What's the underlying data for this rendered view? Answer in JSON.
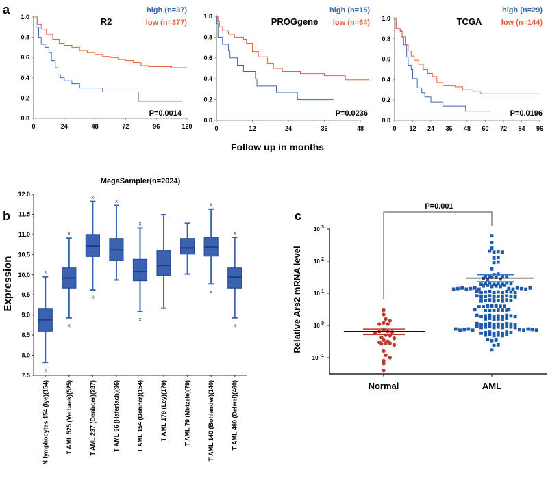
{
  "colors": {
    "high": "#3d66ad",
    "low": "#e5603a",
    "box": "#3a62b0",
    "box_edge": "#2a4f9a",
    "normal": "#c0392b",
    "aml": "#1f5aa8",
    "axis": "#999999"
  },
  "panel_labels": {
    "a": "a",
    "b": "b",
    "c": "c"
  },
  "panel_a": {
    "xlabel": "Follow up in months"
  },
  "chart_data": [
    {
      "type": "line",
      "id": "R2",
      "title": "R2",
      "legend": {
        "high": "high (n=37)",
        "low": "low (n=377)"
      },
      "pvalue": "P=0.0014",
      "xlim": [
        0,
        120
      ],
      "xticks": [
        0,
        24,
        48,
        72,
        96,
        120
      ],
      "ylim": [
        0,
        1
      ],
      "yticks": [
        "0.0",
        "0.2",
        "0.4",
        "0.6",
        "0.8",
        "1.0"
      ],
      "series": [
        {
          "name": "high",
          "points": [
            [
              0,
              1
            ],
            [
              2,
              0.9
            ],
            [
              4,
              0.8
            ],
            [
              6,
              0.73
            ],
            [
              9,
              0.7
            ],
            [
              12,
              0.65
            ],
            [
              14,
              0.57
            ],
            [
              17,
              0.5
            ],
            [
              19,
              0.43
            ],
            [
              21,
              0.4
            ],
            [
              24,
              0.37
            ],
            [
              30,
              0.34
            ],
            [
              36,
              0.3
            ],
            [
              54,
              0.26
            ],
            [
              82,
              0.17
            ],
            [
              116,
              0.17
            ]
          ]
        },
        {
          "name": "low",
          "points": [
            [
              0,
              1
            ],
            [
              3,
              0.93
            ],
            [
              6,
              0.88
            ],
            [
              10,
              0.83
            ],
            [
              15,
              0.78
            ],
            [
              20,
              0.74
            ],
            [
              24,
              0.72
            ],
            [
              30,
              0.7
            ],
            [
              36,
              0.67
            ],
            [
              42,
              0.65
            ],
            [
              48,
              0.63
            ],
            [
              54,
              0.61
            ],
            [
              60,
              0.6
            ],
            [
              66,
              0.58
            ],
            [
              72,
              0.57
            ],
            [
              78,
              0.55
            ],
            [
              84,
              0.52
            ],
            [
              90,
              0.51
            ],
            [
              102,
              0.51
            ],
            [
              108,
              0.5
            ],
            [
              120,
              0.5
            ]
          ]
        }
      ]
    },
    {
      "type": "line",
      "id": "PROGgene",
      "title": "PROGgene",
      "legend": {
        "high": "high (n=15)",
        "low": "low (n=64)"
      },
      "pvalue": "P=0.0236",
      "xlim": [
        0,
        48
      ],
      "xticks": [
        0,
        12,
        24,
        36,
        48
      ],
      "ylim": [
        0,
        1
      ],
      "yticks": [
        "0.0",
        "0.2",
        "0.4",
        "0.6",
        "0.8",
        "1.0"
      ],
      "series": [
        {
          "name": "high",
          "points": [
            [
              0,
              1
            ],
            [
              0.2,
              0.93
            ],
            [
              0.5,
              0.8
            ],
            [
              2,
              0.73
            ],
            [
              4,
              0.67
            ],
            [
              4.5,
              0.6
            ],
            [
              7,
              0.53
            ],
            [
              9,
              0.47
            ],
            [
              13,
              0.4
            ],
            [
              13.5,
              0.33
            ],
            [
              20,
              0.27
            ],
            [
              27,
              0.2
            ],
            [
              39,
              0.2
            ]
          ]
        },
        {
          "name": "low",
          "points": [
            [
              0,
              1
            ],
            [
              0.5,
              0.95
            ],
            [
              1,
              0.9
            ],
            [
              2,
              0.86
            ],
            [
              4,
              0.83
            ],
            [
              6,
              0.8
            ],
            [
              9,
              0.78
            ],
            [
              10,
              0.74
            ],
            [
              12,
              0.66
            ],
            [
              14,
              0.61
            ],
            [
              17,
              0.55
            ],
            [
              19,
              0.5
            ],
            [
              22,
              0.47
            ],
            [
              28,
              0.45
            ],
            [
              36,
              0.43
            ],
            [
              43,
              0.39
            ],
            [
              51,
              0.39
            ]
          ]
        }
      ]
    },
    {
      "type": "line",
      "id": "TCGA",
      "title": "TCGA",
      "legend": {
        "high": "high (n=29)",
        "low": "low (n=144)"
      },
      "pvalue": "P=0.0196",
      "xlim": [
        0,
        96
      ],
      "xticks": [
        0,
        12,
        24,
        36,
        48,
        60,
        72,
        84,
        96
      ],
      "ylim": [
        0,
        1
      ],
      "yticks": [
        "0.0",
        "0.2",
        "0.4",
        "0.6",
        "0.8",
        "1.0"
      ],
      "series": [
        {
          "name": "high",
          "points": [
            [
              0,
              1
            ],
            [
              1,
              0.9
            ],
            [
              4,
              0.87
            ],
            [
              5,
              0.81
            ],
            [
              6,
              0.74
            ],
            [
              8,
              0.62
            ],
            [
              9,
              0.54
            ],
            [
              11,
              0.5
            ],
            [
              12,
              0.41
            ],
            [
              15,
              0.32
            ],
            [
              18,
              0.27
            ],
            [
              20,
              0.23
            ],
            [
              24,
              0.18
            ],
            [
              32,
              0.14
            ],
            [
              47,
              0.09
            ],
            [
              63,
              0.09
            ]
          ]
        },
        {
          "name": "low",
          "points": [
            [
              0,
              1
            ],
            [
              1,
              0.9
            ],
            [
              3,
              0.88
            ],
            [
              5,
              0.82
            ],
            [
              7,
              0.74
            ],
            [
              9,
              0.68
            ],
            [
              11,
              0.63
            ],
            [
              13,
              0.59
            ],
            [
              16,
              0.55
            ],
            [
              19,
              0.5
            ],
            [
              22,
              0.46
            ],
            [
              25,
              0.43
            ],
            [
              28,
              0.37
            ],
            [
              32,
              0.34
            ],
            [
              40,
              0.33
            ],
            [
              45,
              0.3
            ],
            [
              52,
              0.28
            ],
            [
              57,
              0.26
            ],
            [
              95,
              0.26
            ]
          ]
        }
      ]
    },
    {
      "type": "box",
      "id": "MegaSampler",
      "title": "MegaSampler(n=2024)",
      "ylabel": "Expression",
      "ylim": [
        7.5,
        12.0
      ],
      "yticks": [
        "7.5",
        "8.0",
        "8.5",
        "9.0",
        "9.5",
        "10.0",
        "10.5",
        "11.0",
        "11.5",
        "12.0"
      ],
      "categories": [
        "N lymphocytes 154 (Iye)(154)",
        "T AML 525 (Verhaak)(525)",
        "T AML 237 (Denboer)(237)",
        "T AML 96 (Haferlach)(96)",
        "T AML 154 (Dohner)(154)",
        "T AML 179 (Ley)(179)",
        "T AML 79 (Metzele)(79)",
        "T AML 140 (Bohlander)(140)",
        "T AML 460 (Delwel)(460)"
      ],
      "boxes": [
        {
          "min": 7.82,
          "q1": 8.6,
          "median": 8.88,
          "q3": 9.15,
          "max": 9.95,
          "outliers": [
            7.63,
            10.07
          ]
        },
        {
          "min": 8.93,
          "q1": 9.67,
          "median": 9.92,
          "q3": 10.17,
          "max": 10.91,
          "outliers": [
            8.75,
            11.03
          ]
        },
        {
          "min": 9.62,
          "q1": 10.45,
          "median": 10.71,
          "q3": 11.0,
          "max": 11.82,
          "outliers": [
            9.45,
            11.93
          ]
        },
        {
          "min": 9.87,
          "q1": 10.35,
          "median": 10.62,
          "q3": 10.9,
          "max": 11.72,
          "outliers": [
            11.83
          ]
        },
        {
          "min": 9.08,
          "q1": 9.85,
          "median": 10.08,
          "q3": 10.38,
          "max": 11.16,
          "outliers": [
            8.9,
            11.28
          ]
        },
        {
          "min": 9.17,
          "q1": 9.99,
          "median": 10.23,
          "q3": 10.61,
          "max": 11.49,
          "outliers": []
        },
        {
          "min": 10.02,
          "q1": 10.51,
          "median": 10.67,
          "q3": 10.9,
          "max": 11.28,
          "outliers": []
        },
        {
          "min": 9.77,
          "q1": 10.46,
          "median": 10.69,
          "q3": 10.93,
          "max": 11.63,
          "outliers": [
            9.59,
            11.75
          ]
        },
        {
          "min": 8.93,
          "q1": 9.67,
          "median": 9.94,
          "q3": 10.17,
          "max": 10.93,
          "outliers": [
            8.75,
            11.04
          ]
        }
      ]
    },
    {
      "type": "scatter",
      "id": "Ars2",
      "ylabel": "Relative Ars2 mRNA level",
      "yscale": "log",
      "ylim": [
        0.03,
        1000
      ],
      "yticks": [
        {
          "base": "10",
          "exp": "-1"
        },
        {
          "base": "10",
          "exp": "0"
        },
        {
          "base": "10",
          "exp": "1"
        },
        {
          "base": "10",
          "exp": "2"
        },
        {
          "base": "10",
          "exp": "3"
        }
      ],
      "categories": [
        "Normal",
        "AML"
      ],
      "pvalue": "P=0.001",
      "groups": [
        {
          "name": "Normal",
          "mean": 0.65,
          "sem": [
            0.52,
            0.78
          ],
          "values": [
            3.0,
            2.2,
            1.6,
            1.4,
            1.2,
            1.1,
            1.1,
            0.75,
            0.7,
            0.65,
            0.65,
            0.62,
            0.6,
            0.5,
            0.48,
            0.42,
            0.4,
            0.35,
            0.32,
            0.3,
            0.28,
            0.28,
            0.27,
            0.25,
            0.16,
            0.12,
            0.1,
            0.08,
            0.065,
            0.04
          ]
        },
        {
          "name": "AML",
          "mean": 30,
          "sem": [
            23,
            38
          ],
          "value_counts": [
            [
              650,
              1
            ],
            [
              400,
              1
            ],
            [
              270,
              1
            ],
            [
              200,
              4
            ],
            [
              130,
              2
            ],
            [
              95,
              2
            ],
            [
              60,
              1
            ],
            [
              40,
              2
            ],
            [
              33,
              6
            ],
            [
              28,
              3
            ],
            [
              20,
              8
            ],
            [
              17,
              6
            ],
            [
              14,
              13
            ],
            [
              11,
              10
            ],
            [
              8,
              10
            ],
            [
              6,
              8
            ],
            [
              4,
              10
            ],
            [
              3,
              8
            ],
            [
              2,
              10
            ],
            [
              1.6,
              6
            ],
            [
              1.1,
              10
            ],
            [
              0.9,
              10
            ],
            [
              0.75,
              10
            ],
            [
              0.6,
              8
            ],
            [
              0.5,
              6
            ],
            [
              0.35,
              3
            ],
            [
              0.25,
              2
            ],
            [
              0.18,
              1
            ]
          ]
        }
      ]
    }
  ]
}
